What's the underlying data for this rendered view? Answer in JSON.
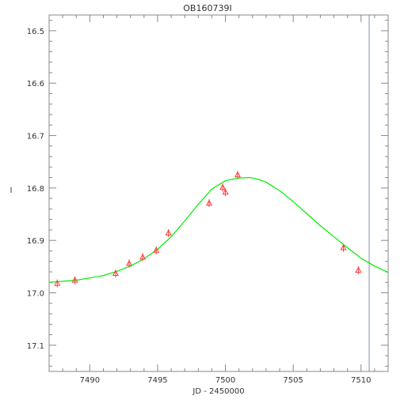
{
  "chart_data": {
    "type": "scatter",
    "title": "OB160739I",
    "xlabel": "JD - 2450000",
    "ylabel": "I",
    "xlim": [
      7487,
      7512
    ],
    "ylim": [
      17.15,
      16.47
    ],
    "y_inverted": true,
    "x_ticks": [
      7490,
      7495,
      7500,
      7505,
      7510
    ],
    "x_tick_labels": [
      "7490",
      "7495",
      "7500",
      "7505",
      "7510"
    ],
    "y_ticks": [
      16.5,
      16.6,
      16.7,
      16.8,
      16.9,
      17.0,
      17.1
    ],
    "y_tick_labels": [
      "16.5",
      "16.6",
      "16.7",
      "16.8",
      "16.9",
      "17.0",
      "17.1"
    ],
    "vertical_line_x": 7510.6,
    "colors": {
      "points": "#ff3b3b",
      "model": "#00ee00",
      "frame": "#888888",
      "vline": "#7f8fa8"
    },
    "observations": {
      "marker": "triangle",
      "x": [
        7487.6,
        7488.9,
        7491.9,
        7492.9,
        7493.9,
        7494.9,
        7495.8,
        7498.8,
        7499.8,
        7500.0,
        7500.9,
        7508.7,
        7509.8
      ],
      "y": [
        16.982,
        16.976,
        16.963,
        16.944,
        16.932,
        16.919,
        16.886,
        16.829,
        16.799,
        16.808,
        16.775,
        16.914,
        16.957
      ]
    },
    "model": {
      "x": [
        7487,
        7489,
        7491,
        7492,
        7493,
        7494,
        7495,
        7496,
        7497,
        7498,
        7499,
        7500,
        7501,
        7501.8,
        7502.5,
        7503,
        7504,
        7505,
        7506,
        7507,
        7508,
        7509,
        7510,
        7511,
        7512
      ],
      "y": [
        16.98,
        16.976,
        16.967,
        16.959,
        16.949,
        16.935,
        16.917,
        16.893,
        16.863,
        16.831,
        16.802,
        16.786,
        16.781,
        16.78,
        16.784,
        16.789,
        16.805,
        16.826,
        16.849,
        16.872,
        16.893,
        16.914,
        16.934,
        16.949,
        16.961
      ]
    }
  }
}
